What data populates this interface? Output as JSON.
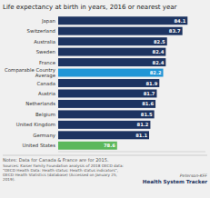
{
  "chart_data": {
    "type": "bar",
    "orientation": "horizontal",
    "title": "Life expectancy at birth in years, 2016 or nearest year",
    "categories": [
      "Japan",
      "Switzerland",
      "Australia",
      "Sweden",
      "France",
      "Comparable Country\nAverage",
      "Canada",
      "Austria",
      "Netherlands",
      "Belgium",
      "United Kingdom",
      "Germany",
      "United States"
    ],
    "values": [
      84.1,
      83.7,
      82.5,
      82.4,
      82.4,
      82.2,
      81.9,
      81.7,
      81.6,
      81.5,
      81.2,
      81.1,
      78.6
    ],
    "colors": [
      "#1d3461",
      "#1d3461",
      "#1d3461",
      "#1d3461",
      "#1d3461",
      "#2196d6",
      "#1d3461",
      "#1d3461",
      "#1d3461",
      "#1d3461",
      "#1d3461",
      "#1d3461",
      "#5cb85c"
    ],
    "xlim": [
      74,
      85.5
    ],
    "data_labels": true,
    "tick_labels": "y",
    "grid": false,
    "annotations": [
      "Notes: Data for Canada & France are for 2015.",
      "Sources: Kaiser Family Foundation analysis of 2018 OECD data:",
      "\"OECD Health Data: Health status: Health status indicators\",",
      "OECD Health Statistics (database) (Accessed on January 25,",
      "2019).",
      "Peterson-KFF",
      "Health System Tracker"
    ]
  }
}
